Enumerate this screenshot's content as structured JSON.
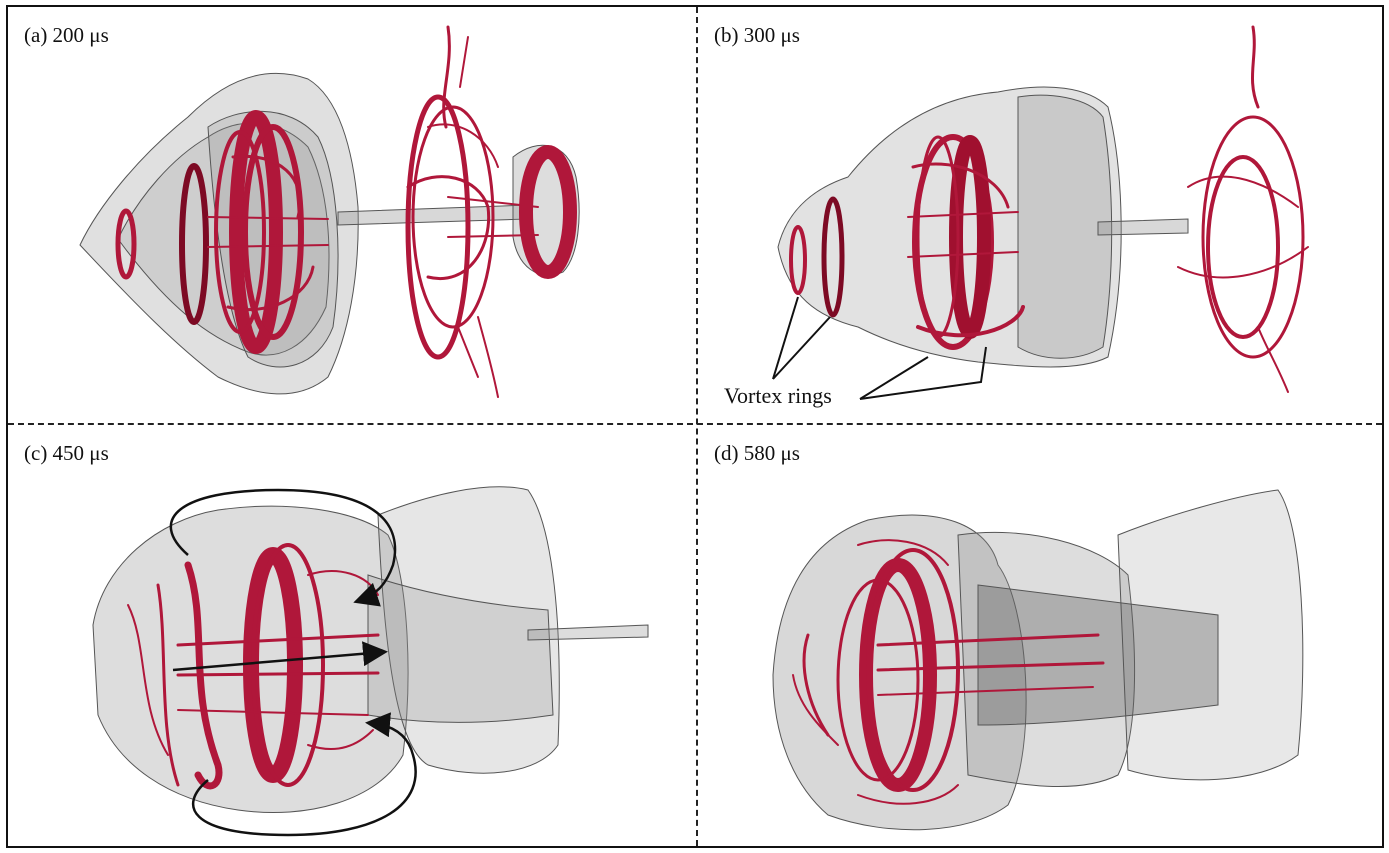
{
  "panels": [
    {
      "id": "a",
      "label": "(a) 200 μs"
    },
    {
      "id": "b",
      "label": "(b) 300 μs"
    },
    {
      "id": "c",
      "label": "(c) 450 μs"
    },
    {
      "id": "d",
      "label": "(d) 580 μs"
    }
  ],
  "annotations": {
    "vortex_rings": "Vortex rings"
  },
  "colors": {
    "vortex_red": "#b0173a",
    "vortex_dark": "#7d0a24",
    "surface_grey": "#8e8e8e",
    "surface_dark": "#4a4a4a",
    "border": "#111111"
  },
  "icons": [
    "curved-arrow-icon",
    "straight-arrow-icon",
    "pointer-line-icon"
  ]
}
